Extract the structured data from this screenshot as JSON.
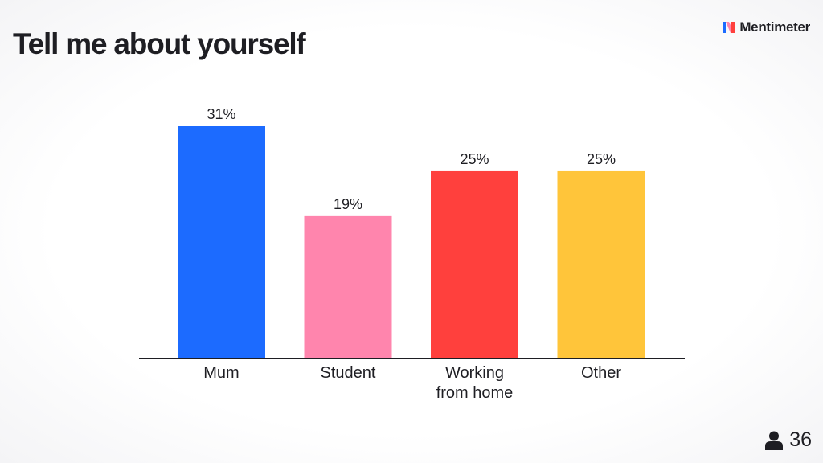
{
  "slide": {
    "title": "Tell me about yourself"
  },
  "brand": {
    "name": "Mentimeter",
    "icon": "mentimeter-logo-icon"
  },
  "participants": {
    "icon": "person-icon",
    "count": "36"
  },
  "chart_data": {
    "type": "bar",
    "title": "Tell me about yourself",
    "categories": [
      [
        "Mum"
      ],
      [
        "Student"
      ],
      [
        "Working",
        "from home"
      ],
      [
        "Other"
      ]
    ],
    "values": [
      31,
      19,
      25,
      25
    ],
    "value_labels": [
      "31%",
      "19%",
      "25%",
      "25%"
    ],
    "colors": [
      "#1c6bff",
      "#ff85ad",
      "#ff403d",
      "#ffc53a"
    ],
    "ylim": [
      0,
      31
    ],
    "grid": false,
    "legend": "none"
  }
}
